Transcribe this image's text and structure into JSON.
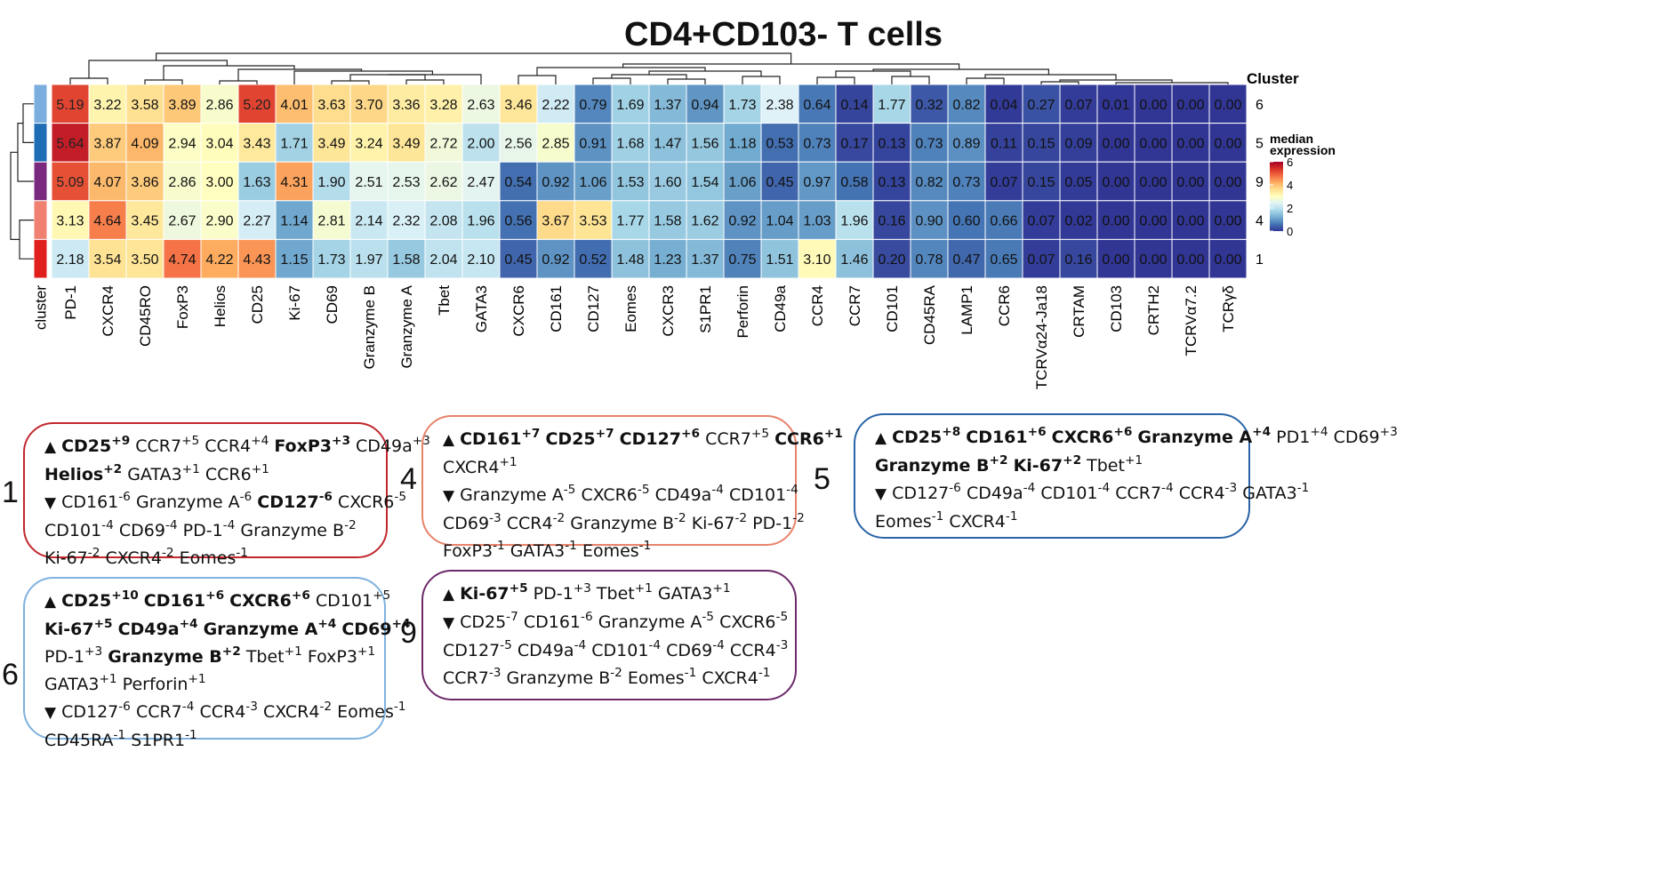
{
  "chart_data": {
    "type": "heatmap",
    "title": "CD4+CD103- T cells",
    "column_annotation_label": "cluster",
    "row_annotation_title": "Cluster",
    "legend": {
      "title_line1": "median",
      "title_line2": "expression",
      "ticks": [
        "6",
        "4",
        "2",
        "0"
      ],
      "range": [
        0,
        6
      ],
      "colors": [
        "#313695",
        "#4575b4",
        "#74add1",
        "#abd9e9",
        "#e0f3f8",
        "#ffffbf",
        "#fee090",
        "#fdae61",
        "#f46d43",
        "#d73027",
        "#a50026"
      ]
    },
    "columns": [
      "PD-1",
      "CXCR4",
      "CD45RO",
      "FoxP3",
      "Helios",
      "CD25",
      "Ki-67",
      "CD69",
      "Granzyme B",
      "Granzyme A",
      "Tbet",
      "GATA3",
      "CXCR6",
      "CD161",
      "CD127",
      "Eomes",
      "CXCR3",
      "S1PR1",
      "Perforin",
      "CD49a",
      "CCR4",
      "CCR7",
      "CD101",
      "CD45RA",
      "LAMP1",
      "CCR6",
      "TCRVα24-Ja18",
      "CRTAM",
      "CD103",
      "CRTH2",
      "TCRVα7.2",
      "TCRγδ"
    ],
    "rows": [
      {
        "cluster": "6",
        "color": "#7aaede",
        "values": [
          5.19,
          3.22,
          3.58,
          3.89,
          2.86,
          5.2,
          4.01,
          3.63,
          3.7,
          3.36,
          3.28,
          2.63,
          3.46,
          2.22,
          0.79,
          1.69,
          1.37,
          0.94,
          1.73,
          2.38,
          0.64,
          0.14,
          1.77,
          0.32,
          0.82,
          0.04,
          0.27,
          0.07,
          0.01,
          0.0,
          0.0,
          0.0
        ]
      },
      {
        "cluster": "5",
        "color": "#1f6db5",
        "values": [
          5.64,
          3.87,
          4.09,
          2.94,
          3.04,
          3.43,
          1.71,
          3.49,
          3.24,
          3.49,
          2.72,
          2.0,
          2.56,
          2.85,
          0.91,
          1.68,
          1.47,
          1.56,
          1.18,
          0.53,
          0.73,
          0.17,
          0.13,
          0.73,
          0.89,
          0.11,
          0.15,
          0.09,
          0.0,
          0.0,
          0.0,
          0.0
        ]
      },
      {
        "cluster": "9",
        "color": "#7a2a7e",
        "values": [
          5.09,
          4.07,
          3.86,
          2.86,
          3.0,
          1.63,
          4.31,
          1.9,
          2.51,
          2.53,
          2.62,
          2.47,
          0.54,
          0.92,
          1.06,
          1.53,
          1.6,
          1.54,
          1.06,
          0.45,
          0.97,
          0.58,
          0.13,
          0.82,
          0.73,
          0.07,
          0.15,
          0.05,
          0.0,
          0.0,
          0.0,
          0.0
        ]
      },
      {
        "cluster": "4",
        "color": "#f08070",
        "values": [
          3.13,
          4.64,
          3.45,
          2.67,
          2.9,
          2.27,
          1.14,
          2.81,
          2.14,
          2.32,
          2.08,
          1.96,
          0.56,
          3.67,
          3.53,
          1.77,
          1.58,
          1.62,
          0.92,
          1.04,
          1.03,
          1.96,
          0.16,
          0.9,
          0.6,
          0.66,
          0.07,
          0.02,
          0.0,
          0.0,
          0.0,
          0.0
        ]
      },
      {
        "cluster": "1",
        "color": "#e0201c",
        "values": [
          2.18,
          3.54,
          3.5,
          4.74,
          4.22,
          4.43,
          1.15,
          1.73,
          1.97,
          1.58,
          2.04,
          2.1,
          0.45,
          0.92,
          0.52,
          1.48,
          1.23,
          1.37,
          0.75,
          1.51,
          3.1,
          1.46,
          0.2,
          0.78,
          0.47,
          0.65,
          0.07,
          0.16,
          0.0,
          0.0,
          0.0,
          0.0
        ]
      }
    ]
  },
  "summaries": [
    {
      "cluster": "1",
      "border": "#c1272d",
      "lines": [
        [
          [
            "▲",
            "a"
          ],
          [
            "CD25",
            "b",
            "+9"
          ],
          [
            "CCR7",
            "n",
            "+5"
          ],
          [
            "CCR4",
            "n",
            "+4"
          ],
          [
            "FoxP3",
            "b",
            "+3"
          ],
          [
            "CD49a",
            "n",
            "+3"
          ]
        ],
        [
          [
            "Helios",
            "b",
            "+2"
          ],
          [
            "GATA3",
            "n",
            "+1"
          ],
          [
            "CCR6",
            "n",
            "+1"
          ]
        ],
        [
          [
            "▼",
            "a"
          ],
          [
            "CD161",
            "n",
            "-6"
          ],
          [
            "Granzyme A",
            "n",
            "-6"
          ],
          [
            "CD127",
            "b",
            "-6"
          ],
          [
            "CXCR6",
            "n",
            "-5"
          ]
        ],
        [
          [
            "CD101",
            "n",
            "-4"
          ],
          [
            "CD69",
            "n",
            "-4"
          ],
          [
            "PD-1",
            "n",
            "-4"
          ],
          [
            "Granzyme B",
            "n",
            "-2"
          ]
        ],
        [
          [
            "Ki-67",
            "n",
            "-2"
          ],
          [
            "CXCR4",
            "n",
            "-2"
          ],
          [
            "Eomes",
            "n",
            "-1"
          ]
        ]
      ]
    },
    {
      "cluster": "4",
      "border": "#e8836b",
      "lines": [
        [
          [
            "▲",
            "a"
          ],
          [
            "CD161",
            "b",
            "+7"
          ],
          [
            "CD25",
            "b",
            "+7"
          ],
          [
            "CD127",
            "b",
            "+6"
          ],
          [
            "CCR7",
            "n",
            "+5"
          ],
          [
            "CCR6",
            "b",
            "+1"
          ]
        ],
        [
          [
            "CXCR4",
            "n",
            "+1"
          ]
        ],
        [
          [
            "▼",
            "a"
          ],
          [
            "Granzyme A",
            "n",
            "-5"
          ],
          [
            "CXCR6",
            "n",
            "-5"
          ],
          [
            "CD49a",
            "n",
            "-4"
          ],
          [
            "CD101",
            "n",
            "-4"
          ]
        ],
        [
          [
            "CD69",
            "n",
            "-3"
          ],
          [
            "CCR4",
            "n",
            "-2"
          ],
          [
            "Granzyme B",
            "n",
            "-2"
          ],
          [
            "Ki-67",
            "n",
            "-2"
          ],
          [
            "PD-1",
            "n",
            "-2"
          ]
        ],
        [
          [
            "FoxP3",
            "n",
            "-1"
          ],
          [
            "GATA3",
            "n",
            "-1"
          ],
          [
            "Eomes",
            "n",
            "-1"
          ]
        ]
      ]
    },
    {
      "cluster": "5",
      "border": "#2a64a6",
      "lines": [
        [
          [
            "▲",
            "a"
          ],
          [
            "CD25",
            "b",
            "+8"
          ],
          [
            "CD161",
            "b",
            "+6"
          ],
          [
            "CXCR6",
            "b",
            "+6"
          ],
          [
            "Granzyme A",
            "b",
            "+4"
          ],
          [
            "PD1",
            "n",
            "+4"
          ],
          [
            "CD69",
            "n",
            "+3"
          ]
        ],
        [
          [
            "Granzyme B",
            "b",
            "+2"
          ],
          [
            "Ki-67",
            "b",
            "+2"
          ],
          [
            "Tbet",
            "n",
            "+1"
          ]
        ],
        [
          [
            "▼",
            "a"
          ],
          [
            "CD127",
            "n",
            "-6"
          ],
          [
            "CD49a",
            "n",
            "-4"
          ],
          [
            "CD101",
            "n",
            "-4"
          ],
          [
            "CCR7",
            "n",
            "-4"
          ],
          [
            "CCR4",
            "n",
            "-3"
          ],
          [
            "GATA3",
            "n",
            "-1"
          ]
        ],
        [
          [
            "Eomes",
            "n",
            "-1"
          ],
          [
            "CXCR4",
            "n",
            "-1"
          ]
        ]
      ]
    },
    {
      "cluster": "6",
      "border": "#7fb2de",
      "lines": [
        [
          [
            "▲",
            "a"
          ],
          [
            "CD25",
            "b",
            "+10"
          ],
          [
            "CD161",
            "b",
            "+6"
          ],
          [
            "CXCR6",
            "b",
            "+6"
          ],
          [
            "CD101",
            "n",
            "+5"
          ]
        ],
        [
          [
            "Ki-67",
            "b",
            "+5"
          ],
          [
            "CD49a",
            "b",
            "+4"
          ],
          [
            "Granzyme A",
            "b",
            "+4"
          ],
          [
            "CD69",
            "b",
            "+4"
          ]
        ],
        [
          [
            "PD-1",
            "n",
            "+3"
          ],
          [
            "Granzyme B",
            "b",
            "+2"
          ],
          [
            "Tbet",
            "n",
            "+1"
          ],
          [
            "FoxP3",
            "n",
            "+1"
          ]
        ],
        [
          [
            "GATA3",
            "n",
            "+1"
          ],
          [
            "Perforin",
            "n",
            "+1"
          ]
        ],
        [
          [
            "▼",
            "a"
          ],
          [
            "CD127",
            "n",
            "-6"
          ],
          [
            "CCR7",
            "n",
            "-4"
          ],
          [
            "CCR4",
            "n",
            "-3"
          ],
          [
            "CXCR4",
            "n",
            "-2"
          ],
          [
            "Eomes",
            "n",
            "-1"
          ]
        ],
        [
          [
            "CD45RA",
            "n",
            "-1"
          ],
          [
            "S1PR1",
            "n",
            "-1"
          ]
        ]
      ]
    },
    {
      "cluster": "9",
      "border": "#6d2a6b",
      "lines": [
        [
          [
            "▲",
            "a"
          ],
          [
            "Ki-67",
            "b",
            "+5"
          ],
          [
            "PD-1",
            "n",
            "+3"
          ],
          [
            "Tbet",
            "n",
            "+1"
          ],
          [
            "GATA3",
            "n",
            "+1"
          ]
        ],
        [
          [
            "▼",
            "a"
          ],
          [
            "CD25",
            "n",
            "-7"
          ],
          [
            "CD161",
            "n",
            "-6"
          ],
          [
            "Granzyme A",
            "n",
            "-5"
          ],
          [
            "CXCR6",
            "n",
            "-5"
          ]
        ],
        [
          [
            "CD127",
            "n",
            "-5"
          ],
          [
            "CD49a",
            "n",
            "-4"
          ],
          [
            "CD101",
            "n",
            "-4"
          ],
          [
            "CD69",
            "n",
            "-4"
          ],
          [
            "CCR4",
            "n",
            "-3"
          ]
        ],
        [
          [
            "CCR7",
            "n",
            "-3"
          ],
          [
            "Granzyme B",
            "n",
            "-2"
          ],
          [
            "Eomes",
            "n",
            "-1"
          ],
          [
            "CXCR4",
            "n",
            "-1"
          ]
        ]
      ]
    }
  ]
}
